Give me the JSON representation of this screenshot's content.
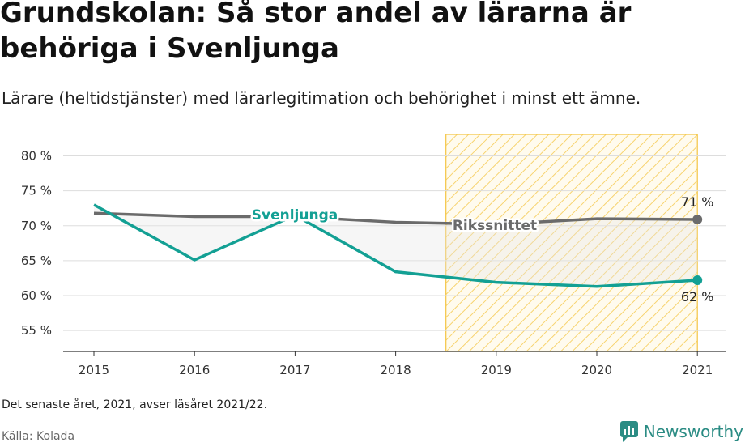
{
  "header": {
    "title": "Grundskolan: Så stor andel av lärarna är behöriga i Svenljunga",
    "subtitle": "Lärare (heltidstjänster) med lärarlegitimation och behörighet i minst ett ämne."
  },
  "footer": {
    "note": "Det senaste året, 2021, avser läsåret 2021/22.",
    "source": "Källa: Kolada",
    "brand": "Newsworthy"
  },
  "colors": {
    "svenljunga": "#13a094",
    "riksnittet": "#6b6b6b",
    "highlight": "#f4c542",
    "grid": "#dddddd",
    "brand": "#2b8c84"
  },
  "chart_data": {
    "type": "line",
    "x": [
      2015,
      2016,
      2017,
      2018,
      2019,
      2020,
      2021
    ],
    "series": [
      {
        "name": "Svenljunga",
        "values": [
          73.0,
          65.1,
          71.5,
          63.4,
          61.9,
          61.3,
          62.2
        ]
      },
      {
        "name": "Rikssnittet",
        "values": [
          71.8,
          71.3,
          71.3,
          70.5,
          70.2,
          71.0,
          70.9
        ]
      }
    ],
    "ylim": [
      52,
      84
    ],
    "yticks": [
      55,
      60,
      65,
      70,
      75,
      80
    ],
    "ytick_suffix": " %",
    "grid": true,
    "highlight_range": [
      2018.5,
      2021
    ],
    "end_labels": {
      "Svenljunga": "62 %",
      "Rikssnittet": "71 %"
    }
  }
}
